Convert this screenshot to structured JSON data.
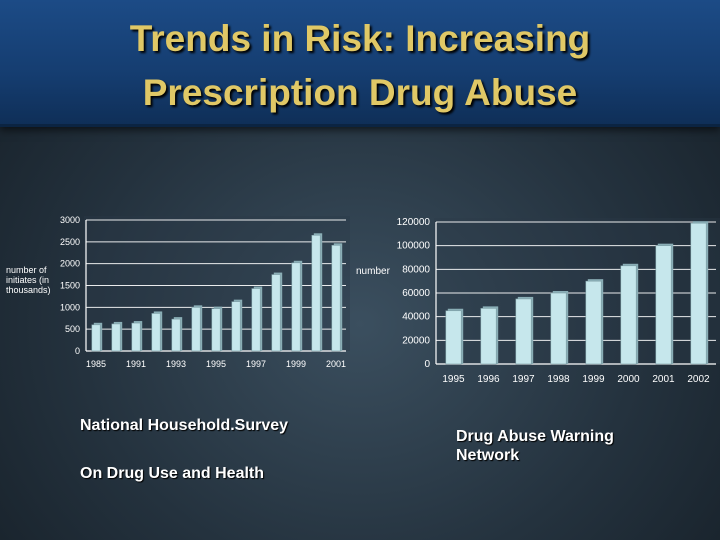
{
  "slide": {
    "title_line1": "Trends in Risk: Increasing",
    "title_line2": "Prescription Drug Abuse",
    "caption_left_1": "National Household.Survey",
    "caption_left_2": "On Drug Use and Health",
    "caption_right": "Drug Abuse Warning Network"
  },
  "colors": {
    "bar_fill": "#c6e7ec",
    "bar_side": "#8aaeb6",
    "grid": "#ffffff",
    "title": "#e0c866"
  },
  "chart_data": [
    {
      "type": "bar",
      "title": "",
      "ylabel": "number of initiates (in thousands)",
      "xlabel": "",
      "ylim": [
        0,
        3000
      ],
      "yticks": [
        0,
        500,
        1000,
        1500,
        2000,
        2500,
        3000
      ],
      "categories": [
        "1985",
        "",
        "1991",
        "",
        "1993",
        "",
        "1995",
        "",
        "1997",
        "",
        "1999",
        "",
        "2001"
      ],
      "values": [
        600,
        620,
        640,
        860,
        730,
        1000,
        970,
        1130,
        1430,
        1750,
        2020,
        2650,
        2420
      ]
    },
    {
      "type": "bar",
      "title": "",
      "ylabel": "number",
      "xlabel": "",
      "ylim": [
        0,
        120000
      ],
      "yticks": [
        0,
        20000,
        40000,
        60000,
        80000,
        100000,
        120000
      ],
      "categories": [
        "1995",
        "1996",
        "1997",
        "1998",
        "1999",
        "2000",
        "2001",
        "2002"
      ],
      "values": [
        45000,
        47000,
        55000,
        60000,
        70000,
        83000,
        100000,
        119000
      ]
    }
  ]
}
